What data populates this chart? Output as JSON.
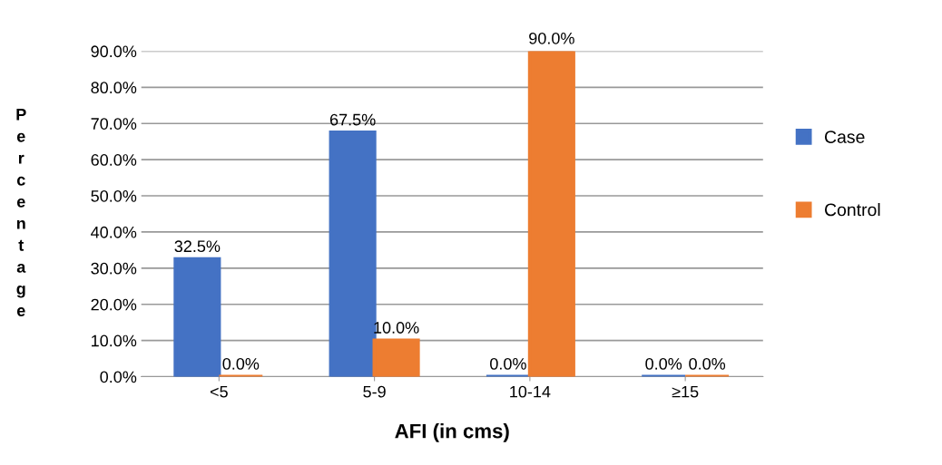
{
  "chart_data": {
    "type": "bar",
    "xlabel": "AFI (in cms)",
    "ylabel": "Percentage",
    "categories": [
      "<5",
      "5-9",
      "10-14",
      "≥15"
    ],
    "series": [
      {
        "name": "Case",
        "color": "#4472c4",
        "values": [
          32.5,
          67.5,
          0,
          0
        ],
        "value_labels": [
          "32.5%",
          "67.5%",
          "0.0%",
          "0.0%"
        ]
      },
      {
        "name": "Control",
        "color": "#ed7d31",
        "values": [
          0,
          10,
          90,
          0
        ],
        "value_labels": [
          "0.0%",
          "10.0%",
          "90.0%",
          "0.0%"
        ]
      }
    ],
    "ylim": [
      0,
      90
    ],
    "yticks": [
      {
        "value": 0,
        "label": "0.0%"
      },
      {
        "value": 10,
        "label": "10.0%"
      },
      {
        "value": 20,
        "label": "20.0%"
      },
      {
        "value": 30,
        "label": "30.0%"
      },
      {
        "value": 40,
        "label": "40.0%"
      },
      {
        "value": 50,
        "label": "50.0%"
      },
      {
        "value": 60,
        "label": "60.0%"
      },
      {
        "value": 70,
        "label": "70.0%"
      },
      {
        "value": 80,
        "label": "80.0%"
      },
      {
        "value": 90,
        "label": "90.0%"
      }
    ],
    "grid": "y",
    "legend": "right"
  }
}
